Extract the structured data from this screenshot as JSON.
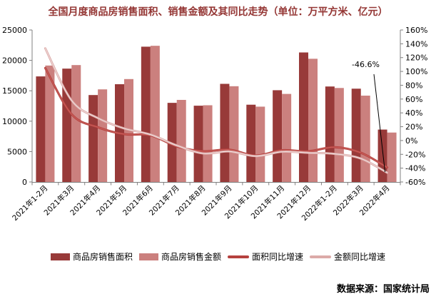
{
  "title": "全国月度商品房销售面积、销售金额及其同比走势（单位：万平方米、亿元）",
  "footer": {
    "source": "数据来源：国家统计局"
  },
  "annotation": {
    "label": "-46.6%"
  },
  "colors": {
    "title": "#943634",
    "axis": "#808080",
    "bar_area": "#983a39",
    "bar_amount": "#cb807e",
    "line_area": "#b5413e",
    "line_amount": "#dcaaa8",
    "annotation_pointer": "#000000"
  },
  "legend": [
    {
      "label": "商品房销售面积",
      "type": "bar",
      "color": "#983a39"
    },
    {
      "label": "商品房销售金额",
      "type": "bar",
      "color": "#cb807e"
    },
    {
      "label": "面积同比增速",
      "type": "line",
      "color": "#b5413e"
    },
    {
      "label": "金额同比增速",
      "type": "line",
      "color": "#dcaaa8"
    }
  ],
  "chart_data": {
    "type": "combo (bar + smoothed line, dual axis)",
    "title": "全国月度商品房销售面积、销售金额及其同比走势（单位：万平方米、亿元）",
    "categories": [
      "2021年1-2月",
      "2021年3月",
      "2021年4月",
      "2021年5月",
      "2021年6月",
      "2021年7月",
      "2021年8月",
      "2021年9月",
      "2021年10月",
      "2021年11月",
      "2021年12月",
      "2022年1-2月",
      "2022年3月",
      "2022年4月"
    ],
    "series": [
      {
        "name": "商品房销售面积",
        "type": "bar",
        "axis": "left",
        "unit": "万平方米",
        "color": "#983a39",
        "values": [
          17363,
          18644,
          14298,
          16078,
          22252,
          13013,
          12545,
          16139,
          12709,
          15090,
          21302,
          15703,
          15343,
          8619
        ]
      },
      {
        "name": "商品房销售金额",
        "type": "bar",
        "axis": "left",
        "unit": "亿元",
        "color": "#cb807e",
        "values": [
          19151,
          19227,
          15231,
          16925,
          22397,
          13499,
          12617,
          15748,
          12390,
          14482,
          20263,
          15459,
          14200,
          8130
        ]
      },
      {
        "name": "面积同比增速",
        "type": "line",
        "axis": "right",
        "unit": "%",
        "color": "#b5413e",
        "values": [
          104.9,
          38.1,
          19.2,
          9.2,
          7.5,
          -8.5,
          -15.5,
          -13.2,
          -21.7,
          -14.0,
          -15.6,
          -9.6,
          -17.7,
          -39.0
        ]
      },
      {
        "name": "金额同比增速",
        "type": "line",
        "axis": "right",
        "unit": "%",
        "color": "#dcaaa8",
        "values": [
          133.4,
          58.1,
          32.5,
          17.5,
          8.6,
          -7.1,
          -18.7,
          -15.8,
          -22.6,
          -16.3,
          -17.8,
          -19.3,
          -26.1,
          -46.6
        ]
      }
    ],
    "y_left": {
      "min": 0,
      "max": 25000,
      "tick_step": 5000,
      "ticks": [
        0,
        5000,
        10000,
        15000,
        20000,
        25000
      ]
    },
    "y_right": {
      "min": -60,
      "max": 160,
      "tick_step": 20,
      "ticks": [
        160,
        140,
        120,
        100,
        80,
        60,
        40,
        20,
        0,
        -20,
        -40,
        -60
      ]
    },
    "grid": false,
    "legend_position": "bottom",
    "annotation": {
      "text": "-46.6%",
      "series": "金额同比增速",
      "category": "2022年4月"
    }
  }
}
